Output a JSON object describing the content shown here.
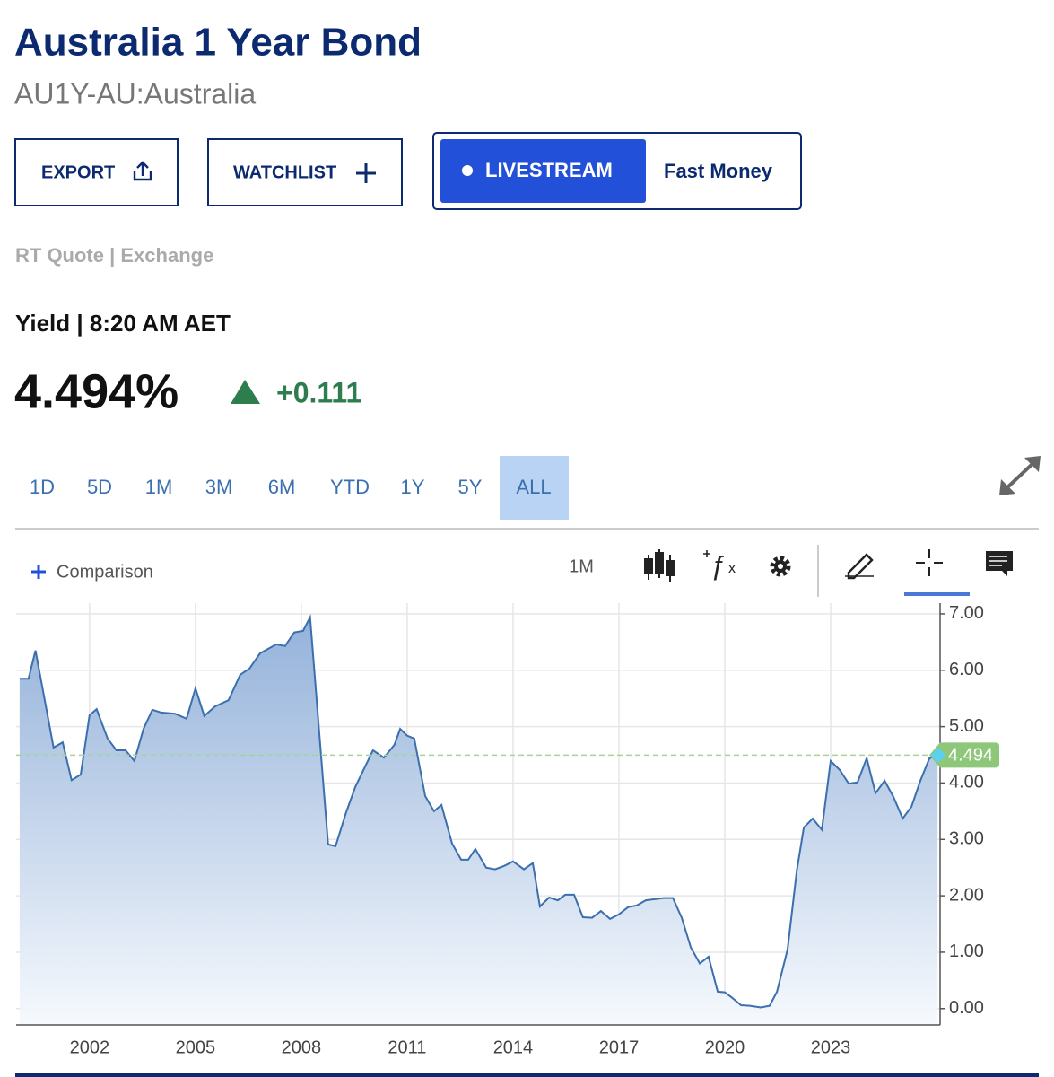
{
  "header": {
    "title": "Australia 1 Year Bond",
    "subtitle": "AU1Y-AU:Australia"
  },
  "buttons": {
    "export": "EXPORT",
    "watchlist": "WATCHLIST",
    "livestream": "LIVESTREAM",
    "fast_money": "Fast Money"
  },
  "quote": {
    "source": "RT Quote | Exchange",
    "time": "Yield | 8:20 AM AET",
    "price": "4.494%",
    "change": "+0.111"
  },
  "ranges": [
    "1D",
    "5D",
    "1M",
    "3M",
    "6M",
    "YTD",
    "1Y",
    "5Y",
    "ALL"
  ],
  "active_range": 8,
  "toolbar": {
    "comparison": "Comparison",
    "interval": "1M"
  },
  "chart_data": {
    "type": "line",
    "color": "#3b6fae",
    "grid": true,
    "x": [
      2000.02,
      2000.27,
      2000.47,
      2000.98,
      2001.24,
      2001.49,
      2001.75,
      2002.0,
      2002.2,
      2002.51,
      2002.76,
      2003.02,
      2003.27,
      2003.53,
      2003.78,
      2004.03,
      2004.42,
      2004.75,
      2005.0,
      2005.25,
      2005.56,
      2005.94,
      2006.27,
      2006.53,
      2006.83,
      2007.29,
      2007.54,
      2007.8,
      2008.05,
      2008.25,
      2008.76,
      2008.97,
      2009.27,
      2009.53,
      2010.03,
      2010.34,
      2010.64,
      2010.8,
      2011.0,
      2011.2,
      2011.51,
      2011.76,
      2011.97,
      2012.27,
      2012.53,
      2012.73,
      2012.93,
      2013.24,
      2013.49,
      2013.75,
      2014.0,
      2014.31,
      2014.56,
      2014.76,
      2015.02,
      2015.27,
      2015.48,
      2015.73,
      2015.98,
      2016.24,
      2016.49,
      2016.75,
      2017.0,
      2017.26,
      2017.51,
      2017.76,
      2018.27,
      2018.53,
      2018.78,
      2019.04,
      2019.29,
      2019.54,
      2019.8,
      2020.0,
      2020.21,
      2020.46,
      2020.71,
      2021.02,
      2021.27,
      2021.48,
      2021.78,
      2022.04,
      2022.24,
      2022.49,
      2022.75,
      2023.0,
      2023.26,
      2023.51,
      2023.76,
      2024.02,
      2024.27,
      2024.53,
      2024.78,
      2025.04,
      2025.29,
      2025.54,
      2025.8,
      2026.03
    ],
    "values": [
      5.85,
      5.85,
      6.35,
      4.63,
      4.72,
      4.05,
      4.15,
      5.2,
      5.31,
      4.79,
      4.58,
      4.58,
      4.39,
      4.96,
      5.3,
      5.25,
      5.23,
      5.14,
      5.68,
      5.19,
      5.36,
      5.47,
      5.92,
      6.03,
      6.3,
      6.46,
      6.43,
      6.67,
      6.7,
      6.94,
      2.91,
      2.88,
      3.48,
      3.93,
      4.58,
      4.45,
      4.68,
      4.96,
      4.84,
      4.79,
      3.77,
      3.5,
      3.61,
      2.93,
      2.64,
      2.64,
      2.83,
      2.5,
      2.47,
      2.53,
      2.61,
      2.47,
      2.58,
      1.81,
      1.97,
      1.92,
      2.02,
      2.02,
      1.62,
      1.61,
      1.73,
      1.59,
      1.67,
      1.8,
      1.83,
      1.92,
      1.96,
      1.96,
      1.61,
      1.08,
      0.8,
      0.92,
      0.3,
      0.29,
      0.19,
      0.06,
      0.05,
      0.02,
      0.05,
      0.3,
      1.05,
      2.45,
      3.21,
      3.37,
      3.17,
      4.39,
      4.23,
      3.99,
      4.01,
      4.44,
      3.82,
      4.04,
      3.75,
      3.37,
      3.58,
      4.04,
      4.44,
      4.494
    ],
    "xlim": [
      1999.92,
      2026.1
    ],
    "ylim": [
      -0.29,
      7.19
    ],
    "xticks": [
      2002,
      2005,
      2008,
      2011,
      2014,
      2017,
      2020,
      2023
    ],
    "yticks": [
      {
        "value": 0,
        "label": "0.00"
      },
      {
        "value": 1,
        "label": "1.00"
      },
      {
        "value": 2,
        "label": "2.00"
      },
      {
        "value": 3,
        "label": "3.00"
      },
      {
        "value": 4,
        "label": "4.00"
      },
      {
        "value": 5,
        "label": "5.00"
      },
      {
        "value": 6,
        "label": "6.00"
      },
      {
        "value": 7,
        "label": "7.00"
      }
    ],
    "current_value": 4.494
  }
}
